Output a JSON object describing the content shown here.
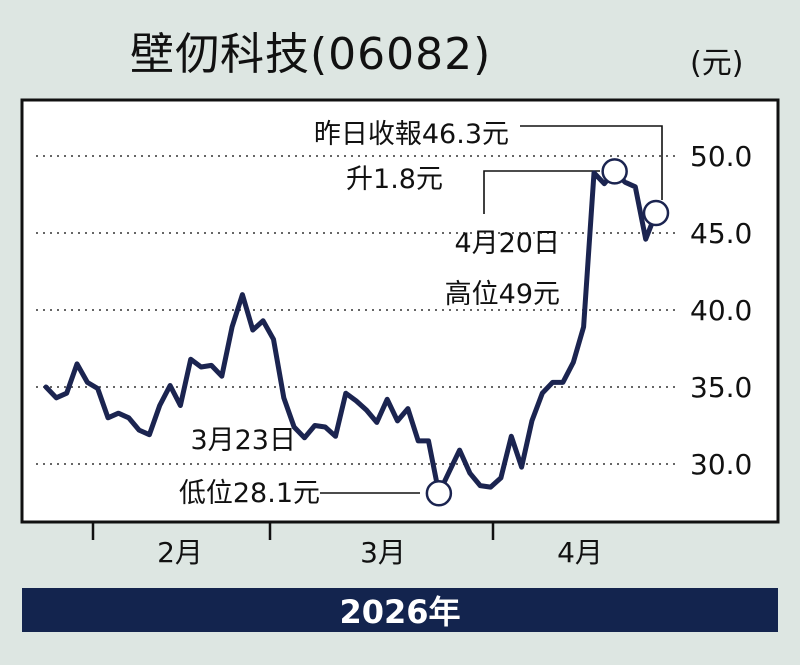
{
  "header": {
    "title": "壁仞科技(06082)",
    "unit": "(元)"
  },
  "footer": {
    "year_label": "2026年"
  },
  "annotations": {
    "close_line1": "昨日收報46.3元",
    "close_line2": "升1.8元",
    "high_line1": "4月20日",
    "high_line2": "高位49元",
    "low_line1": "3月23日",
    "low_line2": "低位28.1元"
  },
  "chart_data": {
    "type": "line",
    "title": "壁仞科技(06082)",
    "ylabel": "(元)",
    "xlabel": "2026年",
    "ylim": [
      26.5,
      52
    ],
    "yticks": [
      30.0,
      35.0,
      40.0,
      45.0,
      50.0
    ],
    "ytick_labels": [
      "30.0",
      "35.0",
      "40.0",
      "45.0",
      "50.0"
    ],
    "xticks": [
      "2月",
      "3月",
      "4月"
    ],
    "grid": true,
    "series": [
      {
        "color": "#1b2450",
        "values": [
          35.0,
          34.3,
          34.6,
          36.5,
          35.3,
          34.9,
          33.0,
          33.3,
          33.0,
          32.2,
          31.9,
          33.8,
          35.1,
          33.8,
          36.8,
          36.3,
          36.4,
          35.7,
          38.9,
          41.0,
          38.7,
          39.3,
          38.1,
          34.3,
          32.4,
          31.7,
          32.5,
          32.4,
          31.8,
          34.6,
          34.1,
          33.5,
          32.7,
          34.2,
          32.8,
          33.6,
          31.5,
          31.5,
          28.1,
          29.5,
          30.9,
          29.4,
          28.6,
          28.5,
          29.1,
          31.8,
          29.8,
          32.8,
          34.6,
          35.3,
          35.3,
          36.6,
          38.9,
          48.9,
          48.2,
          49.0,
          48.3,
          48.0,
          44.6,
          46.3
        ]
      }
    ],
    "markers": [
      {
        "label": "3月23日 低位28.1元",
        "index": 38,
        "value": 28.1
      },
      {
        "label": "4月20日 高位49元",
        "index": 55,
        "value": 49.0
      },
      {
        "label": "昨日收報46.3元",
        "index": 59,
        "value": 46.3
      }
    ]
  }
}
